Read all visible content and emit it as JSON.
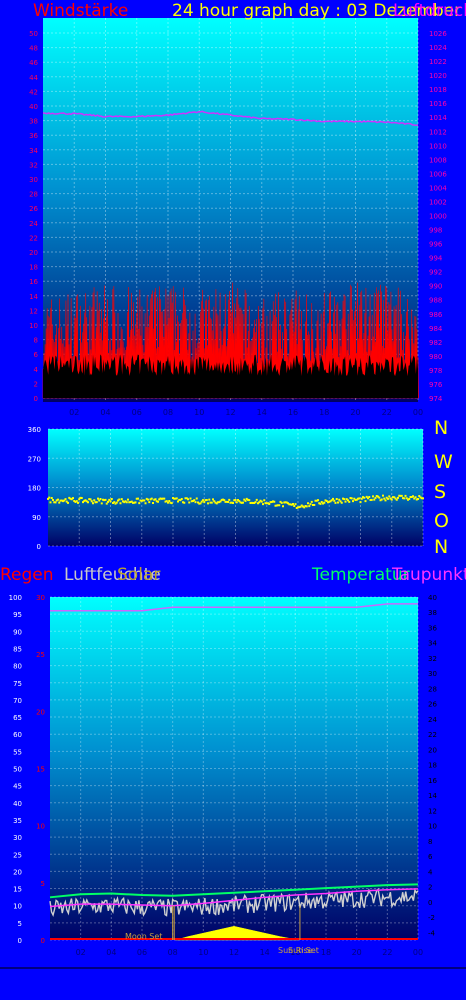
{
  "header": {
    "wind_label": "Windstärke",
    "title": "24 hour graph day : 03 Dezember 2",
    "pressure_label": "Luftdruck"
  },
  "colors": {
    "background": "#0000ff",
    "wind": "#ff0000",
    "gust": "#000000",
    "pressure": "#cc33ff",
    "direction": "#ffff00",
    "rain": "#ff0000",
    "humidity": "#d0d0d0",
    "solar": "#ffff00",
    "temperature": "#00ff66",
    "dewpoint": "#ff33ff",
    "axis_text_left": "#ff0055",
    "axis_text_right": "#ff00aa",
    "axis_text_x": "#000080"
  },
  "compass": [
    "N",
    "W",
    "S",
    "O",
    "N"
  ],
  "lower_labels": {
    "rain": "Regen",
    "humidity": "Luftfeuchte",
    "solar": "Solar",
    "temperature": "Temperatur",
    "dewpoint": "Taupunkt",
    "moon_set": "Moon Set",
    "sun_rise": "Sun Rise",
    "sun_set": "Sun Set"
  },
  "chart_data": [
    {
      "type": "area",
      "panel": "wind_pressure",
      "x_ticks": [
        "02",
        "04",
        "06",
        "08",
        "10",
        "12",
        "14",
        "16",
        "18",
        "20",
        "22",
        "00"
      ],
      "y_left": {
        "label": "Windstärke",
        "range": [
          0,
          50
        ],
        "step": 2
      },
      "y_right": {
        "label": "Luftdruck",
        "range": [
          974,
          1026
        ],
        "step": 2
      },
      "series": [
        {
          "name": "Windstärke",
          "axis": "left",
          "hours": [
            0,
            2,
            4,
            6,
            8,
            10,
            12,
            14,
            16,
            18,
            20,
            22,
            24
          ],
          "values": [
            8,
            9,
            10,
            9,
            10,
            9,
            10,
            8,
            9,
            9,
            10,
            10,
            8
          ]
        },
        {
          "name": "Luftdruck",
          "axis": "right",
          "hours": [
            0,
            2,
            4,
            6,
            8,
            10,
            12,
            14,
            16,
            18,
            20,
            22,
            24
          ],
          "values": [
            1014.6,
            1014.5,
            1014.1,
            1014.1,
            1014.3,
            1014.8,
            1014.3,
            1013.8,
            1013.7,
            1013.4,
            1013.4,
            1013.3,
            1012.9
          ]
        }
      ]
    },
    {
      "type": "scatter",
      "panel": "wind_direction",
      "x_ticks": [
        "02",
        "04",
        "06",
        "08",
        "10",
        "12",
        "14",
        "16",
        "18",
        "20",
        "22",
        "00"
      ],
      "y_left": {
        "ticks": [
          0,
          90,
          180,
          270,
          360
        ],
        "range": [
          0,
          360
        ]
      },
      "series": [
        {
          "name": "Windrichtung",
          "hours": [
            0,
            2,
            4,
            6,
            8,
            10,
            12,
            14,
            16,
            18,
            20,
            22,
            24
          ],
          "values": [
            142,
            140,
            138,
            138,
            140,
            138,
            140,
            135,
            122,
            140,
            142,
            150,
            148
          ]
        }
      ]
    },
    {
      "type": "line",
      "panel": "rain_humidity_temperature",
      "x_ticks": [
        "02",
        "04",
        "06",
        "08",
        "10",
        "12",
        "14",
        "16",
        "18",
        "20",
        "22",
        "00"
      ],
      "y_left_outer": {
        "label": "Luftfeuchte",
        "range": [
          0,
          100
        ],
        "step": 5
      },
      "y_left_inner": {
        "label": "Regen",
        "ticks": [
          0,
          5,
          10,
          15,
          20,
          25,
          30
        ],
        "range": [
          0,
          30
        ]
      },
      "y_right": {
        "label": "Temperatur",
        "range": [
          -5,
          40
        ],
        "step": 2
      },
      "series": [
        {
          "name": "Regen",
          "axis": "left_inner",
          "hours": [
            0,
            24
          ],
          "values": [
            0,
            0
          ]
        },
        {
          "name": "Luftfeuchte",
          "axis": "left_outer",
          "hours": [
            0,
            2,
            4,
            6,
            8,
            10,
            12,
            14,
            16,
            18,
            20,
            22,
            24
          ],
          "values": [
            96,
            96,
            96,
            96,
            97,
            97,
            97,
            97,
            97,
            97,
            97,
            98,
            98
          ]
        },
        {
          "name": "Temperatur",
          "axis": "right",
          "hours": [
            0,
            2,
            4,
            6,
            8,
            10,
            12,
            14,
            16,
            18,
            20,
            22,
            24
          ],
          "values": [
            0.6,
            1,
            1.1,
            0.9,
            0.8,
            1,
            1.2,
            1.4,
            1.6,
            1.8,
            2,
            2.2,
            2.3
          ]
        },
        {
          "name": "Taupunkt",
          "axis": "right",
          "hours": [
            0,
            2,
            4,
            6,
            8,
            10,
            12,
            14,
            16,
            18,
            20,
            22,
            24
          ],
          "values": [
            -0.6,
            -0.3,
            -0.3,
            -0.4,
            -0.5,
            -0.2,
            0.2,
            0.6,
            0.9,
            1.1,
            1.4,
            1.6,
            1.7
          ]
        },
        {
          "name": "Solar",
          "axis": "left_outer",
          "hours": [
            8.2,
            9,
            10,
            11,
            12,
            13,
            14,
            15,
            16.2
          ],
          "values": [
            0,
            1,
            2,
            3,
            4,
            3,
            2,
            1,
            0
          ]
        }
      ],
      "events": [
        {
          "name": "Moon Set",
          "hour": 8.0
        },
        {
          "name": "Sun Rise",
          "hour": 8.1
        },
        {
          "name": "Sun Set",
          "hour": 16.3
        }
      ]
    }
  ]
}
